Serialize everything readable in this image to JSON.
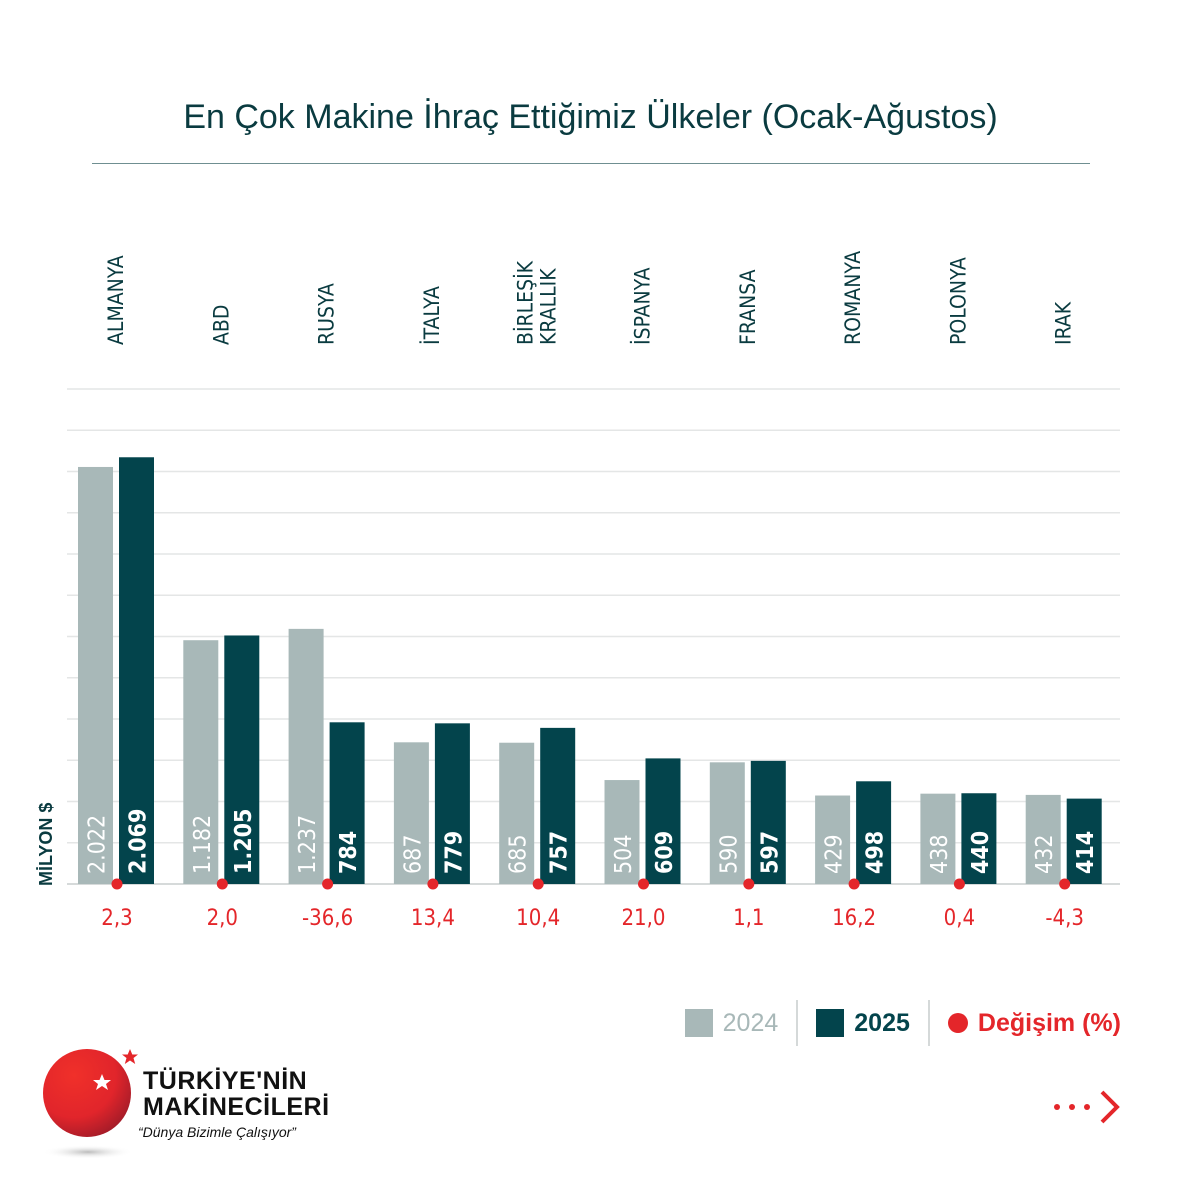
{
  "chart_data": {
    "type": "bar",
    "title": "En Çok Makine İhraç Ettiğimiz Ülkeler (Ocak-Ağustos)",
    "ylabel": "MİLYON $",
    "ylim": [
      0,
      2400
    ],
    "grid": true,
    "legend_position": "bottom-right",
    "categories": [
      [
        "ALMANYA"
      ],
      [
        "ABD"
      ],
      [
        "RUSYA"
      ],
      [
        "İTALYA"
      ],
      [
        "BİRLEŞİK",
        "KRALLIK"
      ],
      [
        "İSPANYA"
      ],
      [
        "FRANSA"
      ],
      [
        "ROMANYA"
      ],
      [
        "POLONYA"
      ],
      [
        "IRAK"
      ]
    ],
    "series": [
      {
        "name": "2024",
        "color": "#a8b8b8",
        "values": [
          2022,
          1182,
          1237,
          687,
          685,
          504,
          590,
          429,
          438,
          432
        ],
        "labels": [
          "2.022",
          "1.182",
          "1.237",
          "687",
          "685",
          "504",
          "590",
          "429",
          "438",
          "432"
        ]
      },
      {
        "name": "2025",
        "color": "#03444c",
        "values": [
          2069,
          1205,
          784,
          779,
          757,
          609,
          597,
          498,
          440,
          414
        ],
        "labels": [
          "2.069",
          "1.205",
          "784",
          "779",
          "757",
          "609",
          "597",
          "498",
          "440",
          "414"
        ]
      }
    ],
    "change": {
      "name": "Değişim (%)",
      "color": "#e4262a",
      "values": [
        "2,3",
        "2,0",
        "-36,6",
        "13,4",
        "10,4",
        "21,0",
        "1,1",
        "16,2",
        "0,4",
        "-4,3"
      ]
    }
  },
  "brand": {
    "line1": "TÜRKİYE'NİN",
    "line2": "MAKİNECİLERİ",
    "slogan": "“Dünya Bizimle Çalışıyor”"
  },
  "nav": {
    "next_icon": "dots-chevron-right"
  }
}
